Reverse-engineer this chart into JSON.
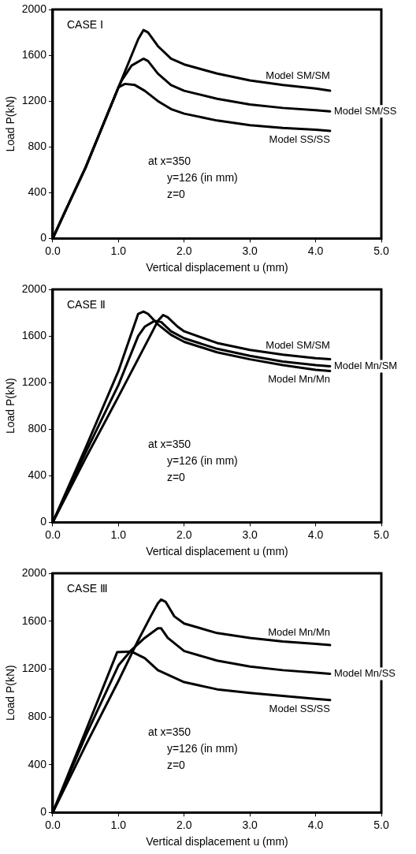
{
  "chart_data": [
    {
      "type": "line",
      "title": "CASE Ⅰ",
      "xlabel": "Vertical displacement u (mm)",
      "ylabel": "Load P(kN)",
      "annotations": [
        "at x=350",
        "y=126 (in mm)",
        "z=0"
      ],
      "legend": false,
      "grid": false,
      "marker": "none",
      "line_style": "solid",
      "xlim": [
        0,
        5
      ],
      "xticks": [
        {
          "value": 0,
          "label": "0.0"
        },
        {
          "value": 1,
          "label": "1.0"
        },
        {
          "value": 2,
          "label": "2.0"
        },
        {
          "value": 3,
          "label": "3.0"
        },
        {
          "value": 4,
          "label": "4.0"
        },
        {
          "value": 5,
          "label": "5.0"
        }
      ],
      "ylim": [
        0,
        2000
      ],
      "yticks": [
        0,
        400,
        800,
        1200,
        1600,
        2000
      ],
      "series": [
        {
          "name": "Model SM/SM",
          "color": "#000000",
          "x": [
            0,
            0.2,
            0.5,
            1.0,
            1.3,
            1.38,
            1.45,
            1.6,
            1.8,
            2.0,
            2.5,
            3.0,
            3.5,
            4.0,
            4.22
          ],
          "values": [
            0,
            250,
            620,
            1320,
            1740,
            1820,
            1800,
            1680,
            1570,
            1520,
            1440,
            1380,
            1340,
            1310,
            1290
          ]
        },
        {
          "name": "Model SM/SS",
          "color": "#000000",
          "x": [
            0,
            0.2,
            0.5,
            1.0,
            1.05,
            1.2,
            1.38,
            1.45,
            1.6,
            1.8,
            2.0,
            2.5,
            3.0,
            3.5,
            4.0,
            4.22
          ],
          "values": [
            0,
            250,
            620,
            1320,
            1380,
            1510,
            1570,
            1550,
            1440,
            1340,
            1290,
            1220,
            1170,
            1140,
            1120,
            1110
          ]
        },
        {
          "name": "Model SS/SS",
          "color": "#000000",
          "x": [
            0,
            0.2,
            0.5,
            1.0,
            1.1,
            1.25,
            1.4,
            1.6,
            1.8,
            2.0,
            2.5,
            3.0,
            3.5,
            4.0,
            4.22
          ],
          "values": [
            0,
            250,
            620,
            1320,
            1350,
            1340,
            1290,
            1200,
            1130,
            1090,
            1030,
            990,
            965,
            950,
            940
          ]
        }
      ]
    },
    {
      "type": "line",
      "title": "CASE Ⅱ",
      "xlabel": "Vertical displacement u (mm)",
      "ylabel": "Load P(kN)",
      "annotations": [
        "at x=350",
        "y=126 (in mm)",
        "z=0"
      ],
      "legend": false,
      "grid": false,
      "marker": "none",
      "line_style": "solid",
      "xlim": [
        0,
        5
      ],
      "xticks": [
        {
          "value": 0,
          "label": "0.0"
        },
        {
          "value": 1,
          "label": "1.0"
        },
        {
          "value": 2,
          "label": "2.0"
        },
        {
          "value": 3,
          "label": "3.0"
        },
        {
          "value": 4,
          "label": "4.0"
        },
        {
          "value": 5,
          "label": "5.0"
        }
      ],
      "ylim": [
        0,
        2000
      ],
      "yticks": [
        0,
        400,
        800,
        1200,
        1600,
        2000
      ],
      "series": [
        {
          "name": "Model SM/SM",
          "color": "#000000",
          "x": [
            0,
            0.5,
            1.0,
            1.5,
            1.6,
            1.68,
            1.75,
            1.9,
            2.0,
            2.5,
            3.0,
            3.5,
            4.0,
            4.22
          ],
          "values": [
            0,
            550,
            1080,
            1620,
            1730,
            1780,
            1760,
            1680,
            1640,
            1540,
            1480,
            1440,
            1410,
            1400
          ]
        },
        {
          "name": "Model Mn/SM",
          "color": "#000000",
          "x": [
            0,
            0.5,
            1.0,
            1.3,
            1.4,
            1.55,
            1.65,
            1.8,
            2.0,
            2.5,
            3.0,
            3.5,
            4.0,
            4.22
          ],
          "values": [
            0,
            600,
            1180,
            1600,
            1680,
            1730,
            1720,
            1640,
            1580,
            1490,
            1430,
            1380,
            1350,
            1340
          ]
        },
        {
          "name": "Model Mn/Mn",
          "color": "#000000",
          "x": [
            0,
            0.5,
            1.0,
            1.3,
            1.38,
            1.45,
            1.6,
            1.8,
            2.0,
            2.5,
            3.0,
            3.5,
            4.0,
            4.22
          ],
          "values": [
            0,
            640,
            1300,
            1790,
            1810,
            1790,
            1700,
            1610,
            1550,
            1460,
            1400,
            1350,
            1310,
            1300
          ]
        }
      ]
    },
    {
      "type": "line",
      "title": "CASE Ⅲ",
      "xlabel": "Vertical displacement u (mm)",
      "ylabel": "Load P(kN)",
      "annotations": [
        "at x=350",
        "y=126 (in mm)",
        "z=0"
      ],
      "legend": false,
      "grid": false,
      "marker": "none",
      "line_style": "solid",
      "xlim": [
        0,
        5
      ],
      "xticks": [
        {
          "value": 0,
          "label": "0.0"
        },
        {
          "value": 1,
          "label": "1.0"
        },
        {
          "value": 2,
          "label": "2.0"
        },
        {
          "value": 3,
          "label": "3.0"
        },
        {
          "value": 4,
          "label": "4.0"
        },
        {
          "value": 5,
          "label": "5.0"
        }
      ],
      "ylim": [
        0,
        2000
      ],
      "yticks": [
        0,
        400,
        800,
        1200,
        1600,
        2000
      ],
      "series": [
        {
          "name": "Model Mn/Mn",
          "color": "#000000",
          "x": [
            0,
            0.5,
            1.0,
            1.3,
            1.5,
            1.6,
            1.65,
            1.72,
            1.85,
            2.0,
            2.5,
            3.0,
            3.5,
            4.0,
            4.22
          ],
          "values": [
            0,
            560,
            1100,
            1440,
            1650,
            1750,
            1780,
            1760,
            1640,
            1580,
            1500,
            1460,
            1430,
            1410,
            1400
          ]
        },
        {
          "name": "Model Mn/SS",
          "color": "#000000",
          "x": [
            0,
            0.5,
            1.0,
            1.2,
            1.4,
            1.6,
            1.65,
            1.75,
            2.0,
            2.5,
            3.0,
            3.5,
            4.0,
            4.22
          ],
          "values": [
            0,
            640,
            1230,
            1360,
            1460,
            1540,
            1540,
            1460,
            1350,
            1270,
            1220,
            1190,
            1170,
            1160
          ]
        },
        {
          "name": "Model SS/SS",
          "color": "#000000",
          "x": [
            0,
            0.5,
            0.98,
            1.2,
            1.4,
            1.6,
            2.0,
            2.5,
            3.0,
            3.5,
            4.0,
            4.22
          ],
          "values": [
            0,
            680,
            1340,
            1345,
            1290,
            1190,
            1090,
            1030,
            1000,
            975,
            950,
            940
          ]
        }
      ]
    }
  ]
}
